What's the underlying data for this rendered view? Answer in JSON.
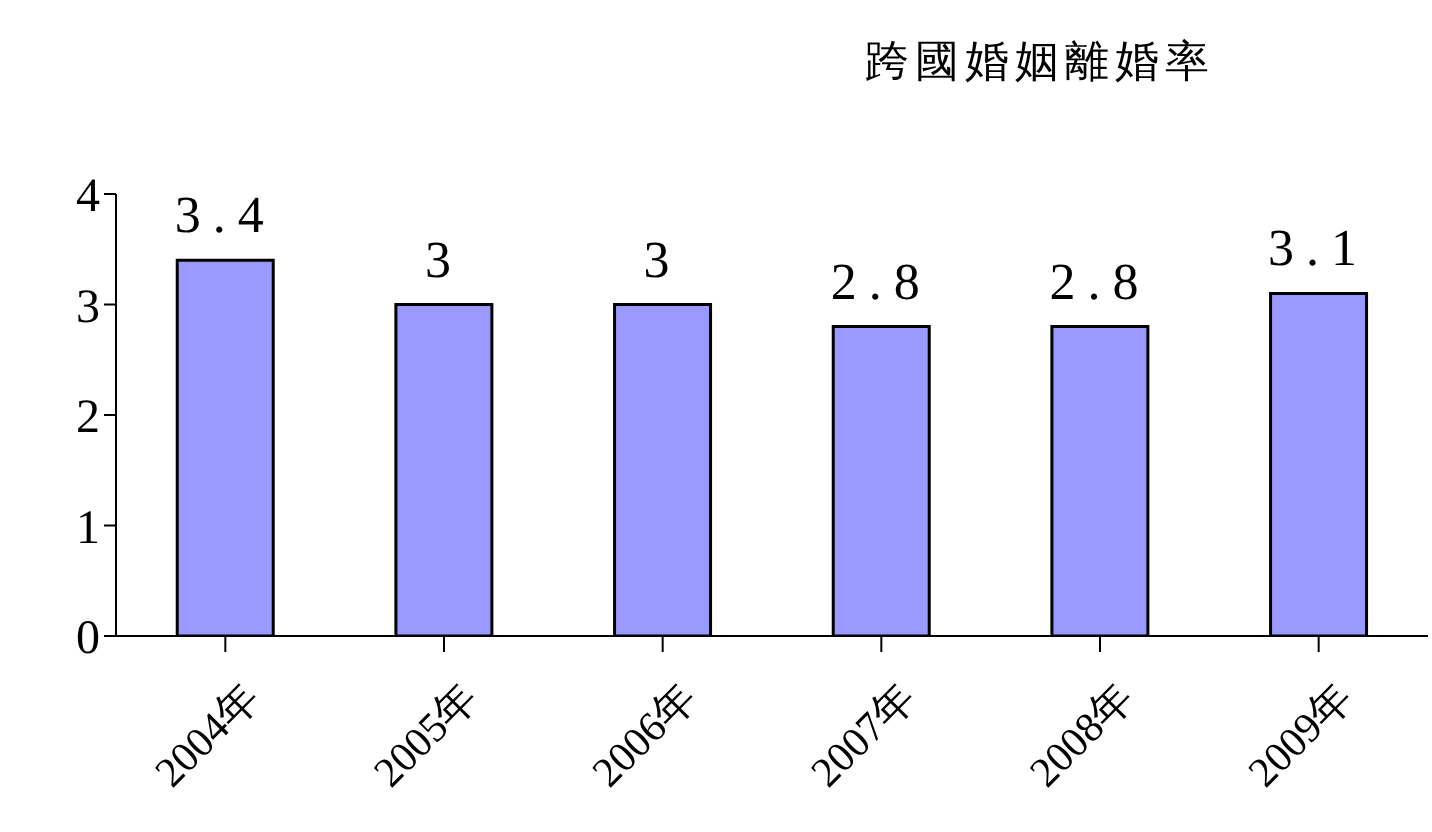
{
  "chart_data": {
    "type": "bar",
    "title": "跨國婚姻離婚率",
    "categories": [
      "2004年",
      "2005年",
      "2006年",
      "2007年",
      "2008年",
      "2009年"
    ],
    "values": [
      3.4,
      3,
      3,
      2.8,
      2.8,
      3.1
    ],
    "color": "#9999ff",
    "ylim": [
      0,
      4
    ],
    "yticks": [
      0,
      1,
      2,
      3,
      4
    ],
    "grid": false,
    "data_labels": true
  }
}
